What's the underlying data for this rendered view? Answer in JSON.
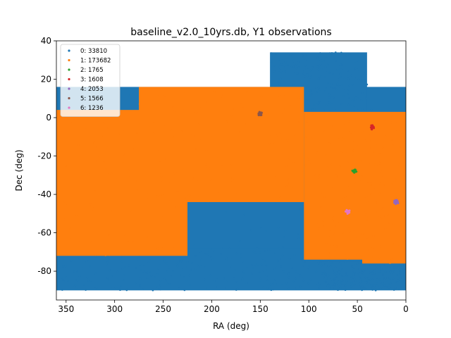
{
  "chart_data": {
    "type": "scatter",
    "title": "baseline_v2.0_10yrs.db, Y1 observations",
    "xlabel": "RA (deg)",
    "ylabel": "Dec (deg)",
    "xlim": [
      360,
      0
    ],
    "ylim": [
      -95,
      40
    ],
    "x_ticks": [
      350,
      300,
      250,
      200,
      150,
      100,
      50,
      0
    ],
    "y_ticks": [
      -80,
      -60,
      -40,
      -20,
      0,
      20,
      40
    ],
    "legend_position": "upper-left",
    "grid": false,
    "series": [
      {
        "name": "0: 33810",
        "color": "#1f77b4",
        "regions": [
          {
            "ra_range": [
              0,
              360
            ],
            "dec_range": [
              -78,
              16
            ]
          },
          {
            "ra_range": [
              40,
              140
            ],
            "dec_range": [
              0,
              34
            ]
          },
          {
            "ra_range": [
              90,
              360
            ],
            "dec_range": [
              -90,
              -68
            ]
          },
          {
            "ra_range": [
              0,
              90
            ],
            "dec_range": [
              -90,
              -75
            ]
          }
        ]
      },
      {
        "name": "1: 173682",
        "color": "#ff7f0e",
        "regions": [
          {
            "ra_range": [
              225,
              360
            ],
            "dec_range": [
              -72,
              4
            ]
          },
          {
            "ra_range": [
              0,
              45
            ],
            "dec_range": [
              -76,
              3
            ]
          },
          {
            "ra_range": [
              45,
              105
            ],
            "dec_range": [
              -74,
              3
            ]
          },
          {
            "ra_range": [
              105,
              275
            ],
            "dec_range": [
              -44,
              16
            ]
          }
        ]
      },
      {
        "name": "2: 1765",
        "color": "#2ca02c",
        "center": {
          "ra": 53,
          "dec": -28
        }
      },
      {
        "name": "3: 1608",
        "color": "#d62728",
        "center": {
          "ra": 35,
          "dec": -5
        }
      },
      {
        "name": "4: 2053",
        "color": "#9467bd",
        "center": {
          "ra": 10,
          "dec": -44
        }
      },
      {
        "name": "5: 1566",
        "color": "#8c564b",
        "center": {
          "ra": 150,
          "dec": 2
        }
      },
      {
        "name": "6: 1236",
        "color": "#e377c2",
        "center": {
          "ra": 60,
          "dec": -49
        }
      }
    ]
  }
}
